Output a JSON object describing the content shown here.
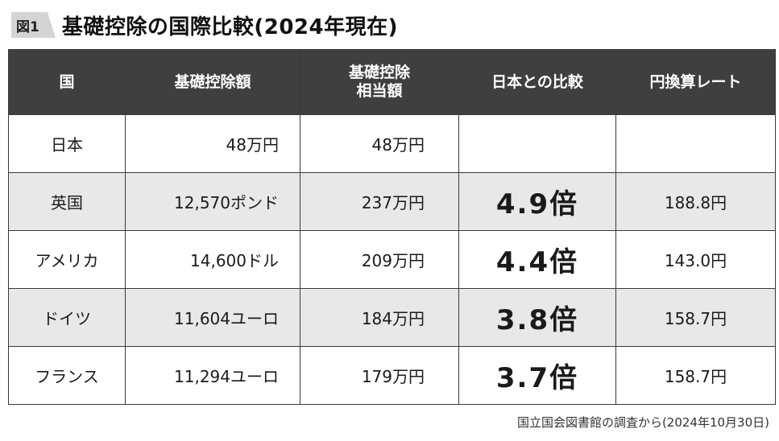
{
  "title": {
    "figure_label": "図1",
    "text": "基礎控除の国際比較(2024年現在)"
  },
  "table": {
    "headers": {
      "country": "国",
      "deduction": "基礎控除額",
      "equivalent_line1": "基礎控除",
      "equivalent_line2": "相当額",
      "vs_japan": "日本との比較",
      "rate": "円換算レート"
    },
    "rows": [
      {
        "country": "日本",
        "deduction": "48万円",
        "equivalent": "48万円",
        "vs_japan": "",
        "rate": ""
      },
      {
        "country": "英国",
        "deduction": "12,570ポンド",
        "equivalent": "237万円",
        "vs_japan": "4.9倍",
        "rate": "188.8円"
      },
      {
        "country": "アメリカ",
        "deduction": "14,600ドル",
        "equivalent": "209万円",
        "vs_japan": "4.4倍",
        "rate": "143.0円"
      },
      {
        "country": "ドイツ",
        "deduction": "11,604ユーロ",
        "equivalent": "184万円",
        "vs_japan": "3.8倍",
        "rate": "158.7円"
      },
      {
        "country": "フランス",
        "deduction": "11,294ユーロ",
        "equivalent": "179万円",
        "vs_japan": "3.7倍",
        "rate": "158.7円"
      }
    ]
  },
  "source": "国立国会図書館の調査から(2024年10月30日)",
  "colors": {
    "header_bg": "#3f3f3f",
    "header_text": "#ffffff",
    "shaded_row": "#e8e8e8",
    "label_bg": "#d4d4d4"
  }
}
